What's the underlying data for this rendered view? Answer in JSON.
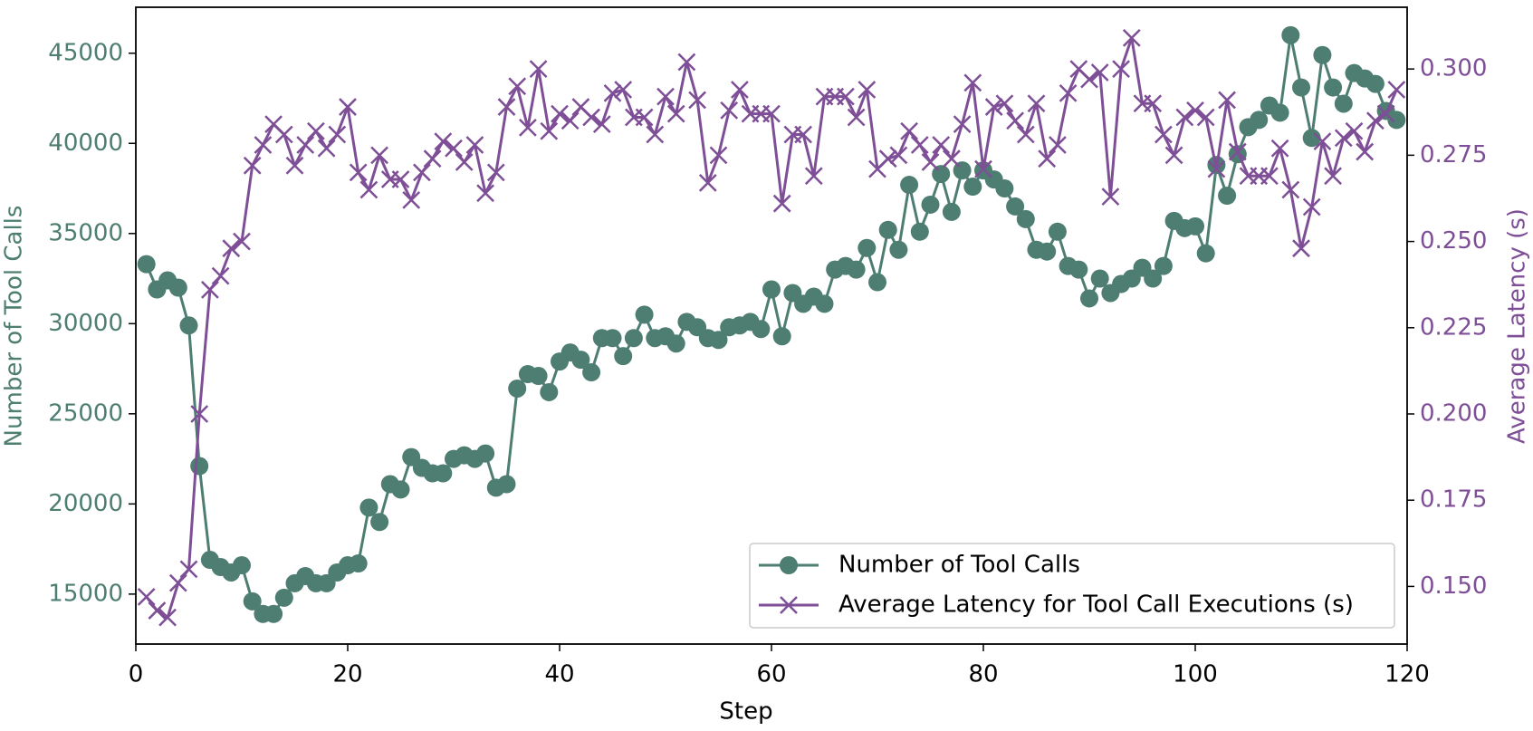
{
  "chart_data": {
    "type": "line",
    "x_label": "Step",
    "y_label": "Number of Tool Calls",
    "y2_label": "Average Latency (s)",
    "x": [
      1,
      2,
      3,
      4,
      5,
      6,
      7,
      8,
      9,
      10,
      11,
      12,
      13,
      14,
      15,
      16,
      17,
      18,
      19,
      20,
      21,
      22,
      23,
      24,
      25,
      26,
      27,
      28,
      29,
      30,
      31,
      32,
      33,
      34,
      35,
      36,
      37,
      38,
      39,
      40,
      41,
      42,
      43,
      44,
      45,
      46,
      47,
      48,
      49,
      50,
      51,
      52,
      53,
      54,
      55,
      56,
      57,
      58,
      59,
      60,
      61,
      62,
      63,
      64,
      65,
      66,
      67,
      68,
      69,
      70,
      71,
      72,
      73,
      74,
      75,
      76,
      77,
      78,
      79,
      80,
      81,
      82,
      83,
      84,
      85,
      86,
      87,
      88,
      89,
      90,
      91,
      92,
      93,
      94,
      95,
      96,
      97,
      98,
      99,
      100,
      101,
      102,
      103,
      104,
      105,
      106,
      107,
      108,
      109,
      110,
      111,
      112,
      113,
      114,
      115,
      116,
      117,
      118,
      119
    ],
    "xlim": [
      0,
      120
    ],
    "xticks": [
      0,
      20,
      40,
      60,
      80,
      100,
      120
    ],
    "ylim": [
      12230,
      47550
    ],
    "yticks": [
      15000,
      20000,
      25000,
      30000,
      35000,
      40000,
      45000
    ],
    "y2lim": [
      0.1333,
      0.3179
    ],
    "y2ticks": [
      {
        "value": 0.15,
        "label": "0.150"
      },
      0.175,
      {
        "value": 0.2,
        "label": "0.200"
      },
      0.225,
      {
        "value": 0.25,
        "label": "0.250"
      },
      0.275,
      {
        "value": 0.3,
        "label": "0.300"
      }
    ],
    "legend": "lower right",
    "series": [
      {
        "name": "Number of Tool Calls",
        "color": "#4e7d72",
        "marker": "circle",
        "values": [
          33300,
          31900,
          32400,
          32000,
          29900,
          22100,
          16900,
          16500,
          16200,
          16600,
          14600,
          13900,
          13900,
          14800,
          15600,
          16000,
          15600,
          15600,
          16200,
          16600,
          16700,
          19800,
          19000,
          21100,
          20800,
          22600,
          22000,
          21700,
          21700,
          22500,
          22700,
          22500,
          22800,
          20900,
          21100,
          26400,
          27200,
          27100,
          26200,
          27900,
          28400,
          28000,
          27300,
          29200,
          29200,
          28200,
          29200,
          30500,
          29200,
          29300,
          28900,
          30100,
          29800,
          29200,
          29100,
          29800,
          29900,
          30100,
          29700,
          31900,
          29300,
          31700,
          31100,
          31500,
          31100,
          33000,
          33200,
          33000,
          34200,
          32300,
          35200,
          34100,
          37700,
          35100,
          36600,
          38300,
          36200,
          38500,
          37600,
          38500,
          38000,
          37500,
          36500,
          35800,
          34100,
          34000,
          35100,
          33200,
          33000,
          31400,
          32500,
          31700,
          32200,
          32500,
          33100,
          32500,
          33200,
          35700,
          35300,
          35400,
          33900,
          38800,
          37100,
          39400,
          40900,
          41300,
          42100,
          41700,
          46000,
          43100,
          40300,
          44900,
          43100,
          42200,
          43900,
          43600,
          43300,
          41800,
          41300
        ]
      },
      {
        "name": "Average Latency for Tool Call Executions (s)",
        "color": "#7e4f96",
        "marker": "x",
        "axis": "y2",
        "values": [
          0.147,
          0.143,
          0.141,
          0.151,
          0.155,
          0.2,
          0.236,
          0.24,
          0.248,
          0.25,
          0.272,
          0.278,
          0.284,
          0.281,
          0.272,
          0.278,
          0.282,
          0.277,
          0.281,
          0.289,
          0.27,
          0.265,
          0.275,
          0.268,
          0.268,
          0.262,
          0.27,
          0.274,
          0.279,
          0.277,
          0.273,
          0.278,
          0.264,
          0.27,
          0.289,
          0.295,
          0.283,
          0.3,
          0.282,
          0.287,
          0.285,
          0.289,
          0.286,
          0.284,
          0.293,
          0.294,
          0.286,
          0.286,
          0.281,
          0.292,
          0.287,
          0.302,
          0.291,
          0.267,
          0.275,
          0.288,
          0.294,
          0.287,
          0.287,
          0.287,
          0.261,
          0.281,
          0.281,
          0.269,
          0.292,
          0.292,
          0.292,
          0.286,
          0.294,
          0.271,
          0.274,
          0.275,
          0.282,
          0.278,
          0.273,
          0.278,
          0.274,
          0.284,
          0.296,
          0.271,
          0.289,
          0.29,
          0.285,
          0.281,
          0.29,
          0.274,
          0.278,
          0.293,
          0.3,
          0.297,
          0.299,
          0.263,
          0.3,
          0.309,
          0.29,
          0.29,
          0.281,
          0.275,
          0.286,
          0.288,
          0.286,
          0.271,
          0.291,
          0.276,
          0.269,
          0.269,
          0.269,
          0.277,
          0.265,
          0.248,
          0.26,
          0.279,
          0.269,
          0.28,
          0.282,
          0.276,
          0.285,
          0.287,
          0.294
        ]
      }
    ]
  }
}
